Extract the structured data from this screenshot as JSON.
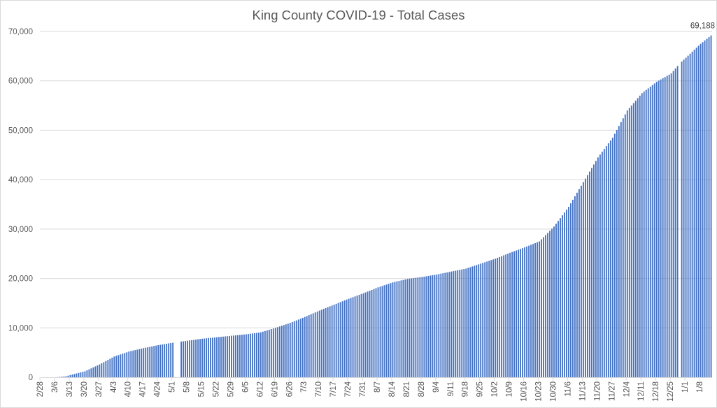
{
  "chart_data": {
    "type": "bar",
    "title": "King County COVID-19 - Total Cases",
    "xlabel": "",
    "ylabel": "",
    "ylim": [
      0,
      70000
    ],
    "yticks": [
      "0",
      "10,000",
      "20,000",
      "30,000",
      "40,000",
      "50,000",
      "60,000",
      "70,000"
    ],
    "ytick_values": [
      0,
      10000,
      20000,
      30000,
      40000,
      50000,
      60000,
      70000
    ],
    "grid": true,
    "start_date": "2/28",
    "day_count": 321,
    "xticks": [
      "2/28",
      "3/6",
      "3/13",
      "3/20",
      "3/27",
      "4/3",
      "4/10",
      "4/17",
      "4/24",
      "5/1",
      "5/8",
      "5/15",
      "5/22",
      "5/29",
      "6/5",
      "6/12",
      "6/19",
      "6/26",
      "7/3",
      "7/10",
      "7/17",
      "7/24",
      "7/31",
      "8/7",
      "8/14",
      "8/21",
      "8/28",
      "9/4",
      "9/11",
      "9/18",
      "9/25",
      "10/2",
      "10/9",
      "10/16",
      "10/23",
      "10/30",
      "11/6",
      "11/13",
      "11/20",
      "11/27",
      "12/4",
      "12/11",
      "12/18",
      "12/25",
      "1/1",
      "1/8"
    ],
    "anchor_days": [
      0,
      7,
      12,
      14,
      21,
      28,
      35,
      42,
      49,
      56,
      63,
      70,
      77,
      84,
      91,
      98,
      105,
      112,
      119,
      126,
      133,
      140,
      147,
      154,
      161,
      168,
      175,
      182,
      189,
      196,
      203,
      210,
      217,
      224,
      231,
      238,
      245,
      252,
      259,
      266,
      273,
      280,
      287,
      294,
      301,
      305,
      308,
      315,
      320
    ],
    "anchor_values": [
      0,
      0,
      200,
      450,
      1200,
      2600,
      4200,
      5200,
      5900,
      6500,
      7000,
      7400,
      7800,
      8100,
      8400,
      8700,
      9100,
      10000,
      11000,
      12200,
      13500,
      14700,
      15900,
      17000,
      18200,
      19200,
      19900,
      20300,
      20800,
      21400,
      22000,
      23000,
      24000,
      25200,
      26300,
      27500,
      30500,
      34500,
      39500,
      44500,
      48500,
      54000,
      57500,
      59800,
      61500,
      63500,
      64700,
      67500,
      69188
    ],
    "gap_days": [
      64,
      65,
      66,
      305
    ],
    "bar_color": "#4472c4",
    "data_label": "69,188",
    "series": [
      {
        "name": "Total Cases"
      }
    ]
  }
}
